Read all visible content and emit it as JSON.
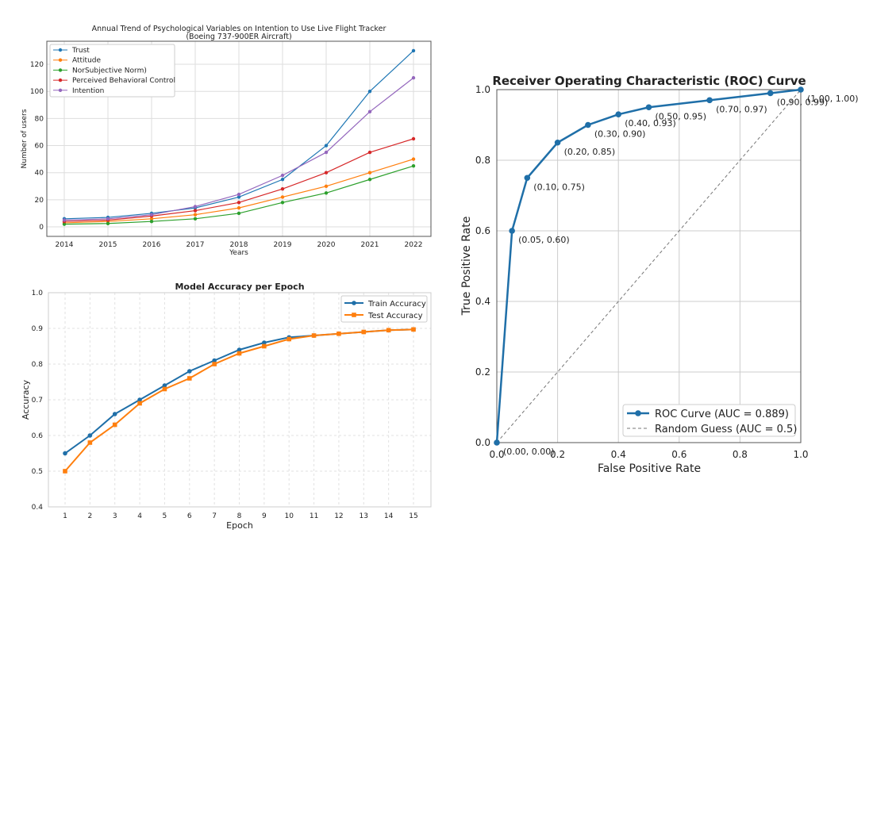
{
  "chart_data": [
    {
      "type": "line",
      "title": "Annual Trend of Psychological Variables on Intention to Use Live Flight Tracker",
      "subtitle": "(Boeing 737-900ER Aircraft)",
      "xlabel": "Years",
      "ylabel": "Number of users",
      "categories": [
        "2014",
        "2015",
        "2016",
        "2017",
        "2018",
        "2019",
        "2020",
        "2021",
        "2022"
      ],
      "yticks": [
        0,
        20,
        40,
        60,
        80,
        100,
        120
      ],
      "ylim": [
        -7,
        137
      ],
      "grid": true,
      "legend": "top-left",
      "series": [
        {
          "name": "Trust",
          "color": "#1f77b4",
          "values": [
            6,
            7,
            10,
            14,
            22,
            35,
            60,
            100,
            130
          ]
        },
        {
          "name": "Attitude",
          "color": "#ff7f0e",
          "values": [
            3,
            4,
            6,
            9,
            14,
            22,
            30,
            40,
            50
          ]
        },
        {
          "name": "NorSubjective Norm)",
          "color": "#2ca02c",
          "values": [
            2,
            2.5,
            4,
            6,
            10,
            18,
            25,
            35,
            45
          ]
        },
        {
          "name": "Perceived Behavioral Control",
          "color": "#d62728",
          "values": [
            4,
            5,
            8,
            12,
            18,
            28,
            40,
            55,
            65
          ]
        },
        {
          "name": "Intention",
          "color": "#9467bd",
          "values": [
            5,
            6,
            9,
            15,
            24,
            38,
            55,
            85,
            110
          ]
        }
      ]
    },
    {
      "type": "line",
      "title": "Model Accuracy per Epoch",
      "xlabel": "Epoch",
      "ylabel": "Accuracy",
      "categories": [
        "1",
        "2",
        "3",
        "4",
        "5",
        "6",
        "7",
        "8",
        "9",
        "10",
        "11",
        "12",
        "13",
        "14",
        "15"
      ],
      "yticks": [
        "0.4",
        "0.5",
        "0.6",
        "0.7",
        "0.8",
        "0.9",
        "1.0"
      ],
      "ylim": [
        0.4,
        1.0
      ],
      "grid": true,
      "legend": "top-right",
      "series": [
        {
          "name": "Train Accuracy",
          "color": "#1f6fa8",
          "marker": "circle",
          "values": [
            0.55,
            0.6,
            0.66,
            0.7,
            0.74,
            0.78,
            0.81,
            0.84,
            0.86,
            0.875,
            0.88,
            0.885,
            0.89,
            0.895,
            0.897
          ]
        },
        {
          "name": "Test Accuracy",
          "color": "#ff7f0e",
          "marker": "square",
          "values": [
            0.5,
            0.58,
            0.63,
            0.69,
            0.73,
            0.76,
            0.8,
            0.83,
            0.85,
            0.87,
            0.88,
            0.885,
            0.89,
            0.895,
            0.897
          ]
        }
      ]
    },
    {
      "type": "line",
      "title": "Receiver Operating Characteristic (ROC) Curve",
      "xlabel": "False Positive Rate",
      "ylabel": "True Positive Rate",
      "xticks": [
        "0.0",
        "0.2",
        "0.4",
        "0.6",
        "0.8",
        "1.0"
      ],
      "yticks": [
        "0.0",
        "0.2",
        "0.4",
        "0.6",
        "0.8",
        "1.0"
      ],
      "xlim": [
        0,
        1
      ],
      "ylim": [
        0,
        1
      ],
      "grid": true,
      "legend": "bottom-right",
      "series": [
        {
          "name": "ROC Curve (AUC = 0.889)",
          "color": "#1f6fa8",
          "x": [
            0,
            0.05,
            0.1,
            0.2,
            0.3,
            0.4,
            0.5,
            0.7,
            0.9,
            1.0
          ],
          "y": [
            0,
            0.6,
            0.75,
            0.85,
            0.9,
            0.93,
            0.95,
            0.97,
            0.99,
            1.0
          ],
          "labels": [
            "(0.00, 0.00)",
            "(0.05, 0.60)",
            "(0.10, 0.75)",
            "(0.20, 0.85)",
            "(0.30, 0.90)",
            "(0.40, 0.93)",
            "(0.50, 0.95)",
            "(0.70, 0.97)",
            "(0.90, 0.99)",
            "(1.00, 1.00)"
          ]
        },
        {
          "name": "Random Guess (AUC = 0.5)",
          "color": "#777777",
          "dashed": true,
          "x": [
            0,
            1
          ],
          "y": [
            0,
            1
          ]
        }
      ]
    }
  ]
}
